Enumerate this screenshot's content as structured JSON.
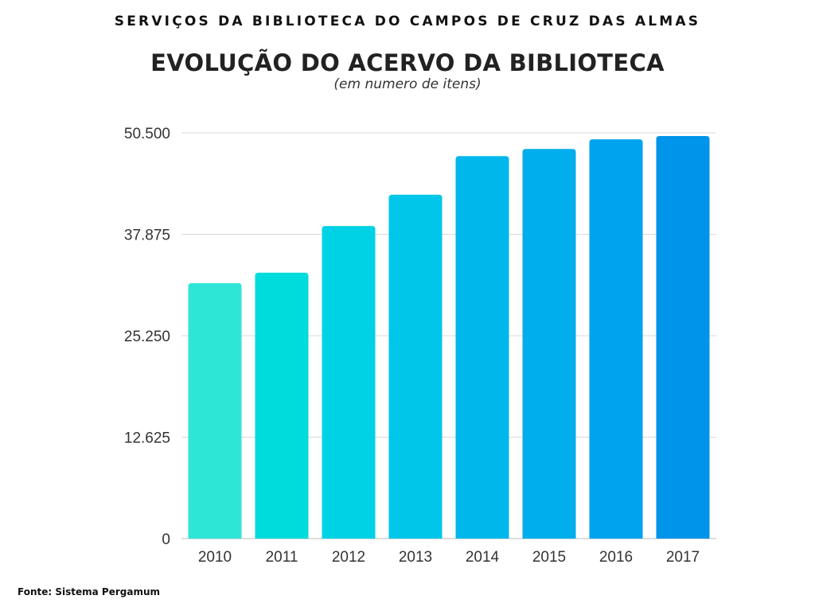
{
  "header": {
    "supertitle": "SERVIÇOS DA BIBLIOTECA DO CAMPOS DE CRUZ DAS ALMAS",
    "title": "EVOLUÇÃO DO ACERVO DA BIBLIOTECA",
    "subtitle": "(em numero de itens)"
  },
  "footer": {
    "source": "Fonte: Sistema Pergamum"
  },
  "chart_data": {
    "type": "bar",
    "categories": [
      "2010",
      "2011",
      "2012",
      "2013",
      "2014",
      "2015",
      "2016",
      "2017"
    ],
    "values": [
      31800,
      33100,
      38900,
      42800,
      47600,
      48500,
      49700,
      50100
    ],
    "title": "EVOLUÇÃO DO ACERVO DA BIBLIOTECA",
    "subtitle": "(em numero de itens)",
    "ylim": [
      0,
      50500
    ],
    "yticks": [
      0,
      12625,
      25250,
      37875,
      50500
    ],
    "ytick_labels": [
      "0",
      "12.625",
      "25.250",
      "37.875",
      "50.500"
    ],
    "grid": true,
    "legend": "none",
    "colors": [
      "#2ee6d6",
      "#00dcdc",
      "#00d2e6",
      "#00c6ea",
      "#00b7ec",
      "#00aded",
      "#00a4ee",
      "#0094ea"
    ]
  }
}
